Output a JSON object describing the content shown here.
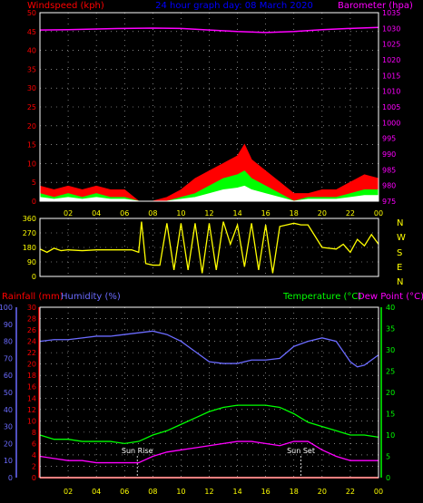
{
  "colors": {
    "background": "#000000",
    "frame": "#ffffff",
    "grid": "#ffffff",
    "wind_speed": "#ff0000",
    "wind_gust": "#00ff00",
    "wind_avg": "#ffffff",
    "barometer": "#ff00ff",
    "direction": "#ffff00",
    "rainfall": "#ff0000",
    "humidity": "#6b6bff",
    "temperature": "#00ff00",
    "dew_point": "#ff00ff",
    "title": "#0000ff",
    "time_axis": "#ffff00",
    "sun_marker": "#ffffff"
  },
  "header": {
    "windspeed_label": "Windspeed (kph)",
    "title": "24 hour graph day: 08 March 2020",
    "barometer_label": "Barometer (hpa)"
  },
  "lower_header": {
    "rainfall_label": "Rainfall (mm)",
    "humidity_label": "Humidity (%)",
    "temperature_label": "Temperature (°C)",
    "dewpoint_label": "Dew Point (°C)"
  },
  "direction_labels": [
    "N",
    "W",
    "S",
    "E",
    "N"
  ],
  "sun": {
    "rise_label": "Sun Rise",
    "set_label": "Sun Set",
    "rise_hour": 6.9,
    "set_hour": 18.5
  },
  "chart_data": [
    {
      "type": "area",
      "title": "24 hour graph day: 08 March 2020",
      "x_ticks": [
        "02",
        "04",
        "06",
        "08",
        "10",
        "12",
        "14",
        "16",
        "18",
        "20",
        "22",
        "00"
      ],
      "xlim": [
        0,
        24
      ],
      "left_axis": {
        "label": "Windspeed (kph)",
        "ylim": [
          0,
          50
        ],
        "ticks": [
          0,
          5,
          10,
          15,
          20,
          25,
          30,
          35,
          40,
          45,
          50
        ]
      },
      "right_axis": {
        "label": "Barometer (hpa)",
        "ylim": [
          975,
          1035
        ],
        "ticks": [
          975,
          980,
          985,
          990,
          995,
          1000,
          1005,
          1010,
          1015,
          1020,
          1025,
          1030,
          1035
        ]
      },
      "series": [
        {
          "name": "Windspeed (kph)",
          "x": [
            0,
            1,
            2,
            3,
            4,
            5,
            6,
            7,
            8,
            9,
            10,
            11,
            12,
            13,
            14,
            14.5,
            15,
            16,
            17,
            18,
            19,
            20,
            21,
            22,
            23,
            24
          ],
          "values": [
            4,
            3,
            4,
            3,
            4,
            3,
            3,
            0,
            0,
            1,
            3,
            6,
            8,
            10,
            12,
            15,
            11,
            8,
            5,
            2,
            2,
            3,
            3,
            5,
            7,
            6
          ]
        },
        {
          "name": "Gust (kph)",
          "x": [
            0,
            1,
            2,
            3,
            4,
            5,
            6,
            7,
            8,
            9,
            10,
            11,
            12,
            13,
            14,
            14.5,
            15,
            16,
            17,
            18,
            19,
            20,
            21,
            22,
            23,
            24
          ],
          "values": [
            2,
            1,
            2,
            1,
            2,
            1,
            1,
            0,
            0,
            0,
            1,
            2,
            4,
            6,
            7,
            8,
            6,
            4,
            2,
            0,
            1,
            1,
            1,
            2,
            3,
            3
          ]
        },
        {
          "name": "Average (kph)",
          "x": [
            0,
            1,
            2,
            3,
            4,
            5,
            6,
            7,
            8,
            9,
            10,
            11,
            12,
            13,
            14,
            14.5,
            15,
            16,
            17,
            18,
            19,
            20,
            21,
            22,
            23,
            24
          ],
          "values": [
            1,
            0.5,
            1,
            0.5,
            1,
            0.5,
            0.5,
            0,
            0,
            0,
            0.5,
            1,
            2,
            3,
            3.5,
            4,
            3,
            2,
            1,
            0,
            0.5,
            0.5,
            0.5,
            1,
            1.5,
            1.5
          ]
        },
        {
          "name": "Barometer (hpa)",
          "axis": "right",
          "x": [
            0,
            2,
            4,
            6,
            8,
            10,
            12,
            14,
            16,
            18,
            20,
            22,
            24
          ],
          "values": [
            1029.5,
            1029.6,
            1029.8,
            1030.0,
            1030.1,
            1030.0,
            1029.5,
            1029.0,
            1028.7,
            1029.0,
            1029.6,
            1030.0,
            1030.3
          ]
        }
      ]
    },
    {
      "type": "scatter",
      "x_ticks": [
        "02",
        "04",
        "06",
        "08",
        "10",
        "12",
        "14",
        "16",
        "18",
        "20",
        "22",
        "00"
      ],
      "xlim": [
        0,
        24
      ],
      "ylim": [
        0,
        360
      ],
      "y_ticks": [
        0,
        90,
        180,
        270,
        360
      ],
      "series": [
        {
          "name": "Wind direction (°)",
          "x": [
            0,
            0.5,
            1,
            1.5,
            2,
            3,
            4,
            5,
            6,
            6.5,
            7,
            7.2,
            7.5,
            8,
            8.5,
            9,
            9.5,
            10,
            10.5,
            11,
            11.5,
            12,
            12.5,
            13,
            13.5,
            14,
            14.5,
            15,
            15.5,
            16,
            16.5,
            17,
            17.5,
            18,
            18.5,
            19,
            20,
            21,
            21.5,
            22,
            22.5,
            23,
            23.5,
            24
          ],
          "values": [
            170,
            150,
            175,
            160,
            165,
            160,
            165,
            165,
            165,
            165,
            150,
            340,
            80,
            70,
            70,
            330,
            40,
            330,
            40,
            330,
            20,
            330,
            40,
            340,
            200,
            320,
            60,
            330,
            40,
            320,
            20,
            310,
            320,
            330,
            320,
            320,
            180,
            170,
            200,
            150,
            230,
            190,
            260,
            200
          ]
        }
      ]
    },
    {
      "type": "line",
      "x_ticks": [
        "02",
        "04",
        "06",
        "08",
        "10",
        "12",
        "14",
        "16",
        "18",
        "20",
        "22",
        "00"
      ],
      "xlim": [
        0,
        24
      ],
      "humidity_axis": {
        "label": "Humidity (%)",
        "ylim": [
          0,
          100
        ],
        "ticks": [
          0,
          10,
          20,
          30,
          40,
          50,
          60,
          70,
          80,
          90,
          100
        ]
      },
      "rainfall_axis": {
        "label": "Rainfall (mm)",
        "ylim": [
          0,
          30
        ],
        "ticks": [
          0,
          2,
          4,
          6,
          8,
          10,
          12,
          14,
          16,
          18,
          20,
          22,
          24,
          26,
          28,
          30
        ]
      },
      "temperature_axis": {
        "label": "Temperature (°C)",
        "ylim": [
          0,
          40
        ],
        "ticks": [
          0,
          5,
          10,
          15,
          20,
          25,
          30,
          35,
          40
        ]
      },
      "series": [
        {
          "name": "Humidity (%)",
          "axis": "humidity",
          "x": [
            0,
            1,
            2,
            3,
            4,
            5,
            6,
            7,
            8,
            9,
            10,
            11,
            12,
            13,
            14,
            15,
            16,
            17,
            18,
            19,
            20,
            21,
            22,
            22.5,
            23,
            23.5,
            24
          ],
          "values": [
            80,
            81,
            81,
            82,
            83,
            83,
            84,
            85,
            86,
            84,
            80,
            74,
            68,
            67,
            67,
            69,
            69,
            70,
            77,
            80,
            82,
            80,
            68,
            65,
            66,
            69,
            72
          ]
        },
        {
          "name": "Temperature (°C)",
          "axis": "temperature",
          "x": [
            0,
            1,
            2,
            3,
            4,
            5,
            6,
            7,
            8,
            9,
            10,
            11,
            12,
            13,
            14,
            15,
            16,
            17,
            18,
            19,
            20,
            21,
            22,
            23,
            24
          ],
          "values": [
            10,
            9,
            9,
            8.5,
            8.5,
            8.5,
            8,
            8.5,
            10,
            11,
            12.5,
            14,
            15.5,
            16.5,
            17,
            17,
            17,
            16.5,
            15,
            13,
            12,
            11,
            10,
            10,
            9.5
          ]
        },
        {
          "name": "Dew Point (°C)",
          "axis": "temperature",
          "x": [
            0,
            1,
            2,
            3,
            4,
            5,
            6,
            7,
            8,
            9,
            10,
            11,
            12,
            13,
            14,
            15,
            16,
            17,
            18,
            19,
            20,
            21,
            22,
            23,
            24
          ],
          "values": [
            5,
            4.5,
            4,
            4,
            3.5,
            3.5,
            3.5,
            3.5,
            5,
            6,
            6.5,
            7,
            7.5,
            8,
            8.5,
            8.5,
            8,
            7.5,
            8.5,
            8.5,
            6.5,
            5,
            4,
            4,
            4
          ]
        },
        {
          "name": "Rainfall (mm)",
          "axis": "rainfall",
          "x": [
            0,
            24
          ],
          "values": [
            0,
            0
          ]
        }
      ]
    }
  ]
}
